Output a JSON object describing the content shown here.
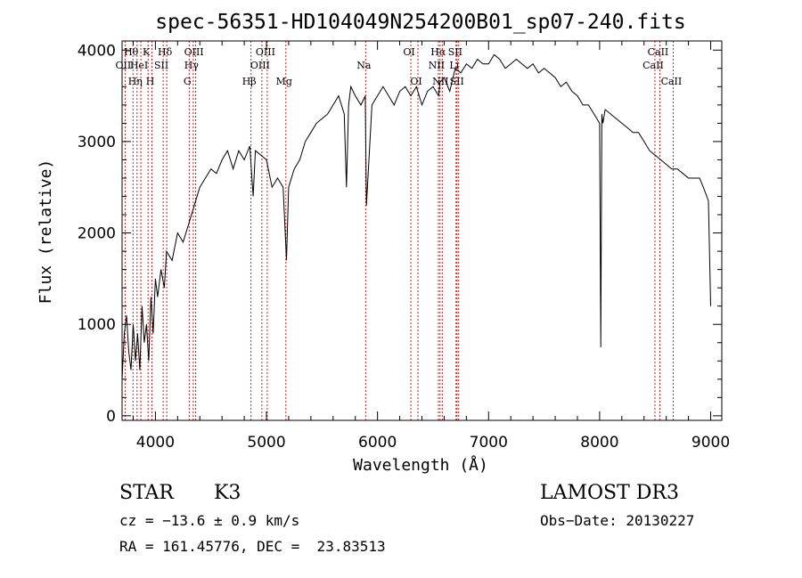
{
  "chart_data": {
    "type": "line",
    "title": "spec-56351-HD104049N254200B01_sp07-240.fits",
    "xlabel": "Wavelength (Å)",
    "ylabel": "Flux (relative)",
    "xlim": [
      3700,
      9100
    ],
    "ylim": [
      -50,
      4100
    ],
    "xticks": [
      4000,
      5000,
      6000,
      7000,
      8000,
      9000
    ],
    "yticks": [
      0,
      1000,
      2000,
      3000,
      4000
    ],
    "grid": false,
    "colors": {
      "spectrum": "#000000",
      "lines": "#cc0000"
    },
    "series": [
      {
        "x": [
          3700,
          3720,
          3740,
          3760,
          3780,
          3800,
          3820,
          3840,
          3860,
          3880,
          3900,
          3920,
          3940,
          3960,
          3980,
          4000,
          4020,
          4050,
          4080,
          4100,
          4150,
          4200,
          4250,
          4300,
          4350,
          4400,
          4450,
          4500,
          4550,
          4600,
          4650,
          4700,
          4750,
          4800,
          4850,
          4880,
          4900,
          4950,
          5000,
          5050,
          5100,
          5150,
          5180,
          5200,
          5250,
          5300,
          5350,
          5400,
          5450,
          5500,
          5550,
          5600,
          5650,
          5700,
          5720,
          5740,
          5760,
          5800,
          5850,
          5890,
          5900,
          5950,
          6000,
          6050,
          6100,
          6150,
          6200,
          6250,
          6300,
          6350,
          6400,
          6450,
          6500,
          6550,
          6563,
          6600,
          6650,
          6700,
          6750,
          6800,
          6850,
          6900,
          6950,
          7000,
          7050,
          7100,
          7150,
          7200,
          7250,
          7300,
          7350,
          7400,
          7450,
          7500,
          7550,
          7600,
          7650,
          7700,
          7750,
          7800,
          7850,
          7900,
          7950,
          8000,
          8010,
          8020,
          8030,
          8050,
          8100,
          8150,
          8200,
          8250,
          8300,
          8350,
          8400,
          8450,
          8500,
          8550,
          8600,
          8650,
          8700,
          8750,
          8800,
          8850,
          8900,
          8950,
          8980,
          9000
        ],
        "y": [
          400,
          900,
          1100,
          700,
          500,
          1000,
          600,
          900,
          500,
          1200,
          800,
          1000,
          600,
          1300,
          900,
          1500,
          1300,
          1600,
          1400,
          1800,
          1700,
          2000,
          1900,
          2100,
          2300,
          2500,
          2600,
          2700,
          2650,
          2800,
          2900,
          2700,
          2900,
          2800,
          2950,
          2400,
          2900,
          2850,
          2800,
          2500,
          2600,
          2500,
          1700,
          2500,
          2700,
          2800,
          3000,
          3100,
          3200,
          3250,
          3300,
          3400,
          3500,
          3300,
          2500,
          3400,
          3600,
          3500,
          3400,
          3500,
          2300,
          3400,
          3500,
          3600,
          3500,
          3400,
          3550,
          3600,
          3500,
          3600,
          3400,
          3550,
          3600,
          3500,
          3650,
          3700,
          3550,
          3800,
          3750,
          3850,
          3800,
          3900,
          3850,
          3850,
          3950,
          3900,
          3800,
          3850,
          3900,
          3850,
          3800,
          3850,
          3750,
          3800,
          3750,
          3700,
          3600,
          3650,
          3550,
          3500,
          3400,
          3400,
          3300,
          3200,
          750,
          3300,
          3200,
          3350,
          3300,
          3250,
          3200,
          3150,
          3100,
          3100,
          3000,
          2900,
          2850,
          2800,
          2750,
          2700,
          2700,
          2650,
          2600,
          2600,
          2600,
          2450,
          2350,
          1200
        ]
      }
    ],
    "spectral_lines": [
      {
        "w": 3727,
        "labels": [
          "OII"
        ],
        "row": 2
      },
      {
        "w": 3798,
        "labels": [
          "Hθ"
        ],
        "row": 1
      },
      {
        "w": 3835,
        "labels": [
          "Hη"
        ],
        "row": 3
      },
      {
        "w": 3869,
        "labels": [
          "HeI"
        ],
        "row": 2
      },
      {
        "w": 3934,
        "labels": [
          "K"
        ],
        "row": 1
      },
      {
        "w": 3969,
        "labels": [
          "H"
        ],
        "row": 3
      },
      {
        "w": 4070,
        "labels": [
          "SII"
        ],
        "row": 2
      },
      {
        "w": 4102,
        "labels": [
          "Hδ"
        ],
        "row": 1
      },
      {
        "w": 4304,
        "labels": [
          "G"
        ],
        "row": 3
      },
      {
        "w": 4341,
        "labels": [
          "Hγ"
        ],
        "row": 2
      },
      {
        "w": 4363,
        "labels": [
          "OIII"
        ],
        "row": 1
      },
      {
        "w": 4861,
        "labels": [
          "Hβ"
        ],
        "row": 3
      },
      {
        "w": 4959,
        "labels": [
          "OIII"
        ],
        "row": 2
      },
      {
        "w": 5007,
        "labels": [
          "OIII"
        ],
        "row": 1
      },
      {
        "w": 5175,
        "labels": [
          "Mg"
        ],
        "row": 3
      },
      {
        "w": 5893,
        "labels": [
          "Na"
        ],
        "row": 2
      },
      {
        "w": 6300,
        "labels": [
          "OI"
        ],
        "row": 1
      },
      {
        "w": 6364,
        "labels": [
          "OI"
        ],
        "row": 3
      },
      {
        "w": 6548,
        "labels": [
          "NII"
        ],
        "row": 2
      },
      {
        "w": 6563,
        "labels": [
          "Hα"
        ],
        "row": 1
      },
      {
        "w": 6583,
        "labels": [
          "NII"
        ],
        "row": 3
      },
      {
        "w": 6707,
        "labels": [
          "Li"
        ],
        "row": 2
      },
      {
        "w": 6716,
        "labels": [
          "SII"
        ],
        "row": 1
      },
      {
        "w": 6731,
        "labels": [
          "SII"
        ],
        "row": 3
      },
      {
        "w": 8498,
        "labels": [
          "CaII"
        ],
        "row": 2
      },
      {
        "w": 8542,
        "labels": [
          "CaII"
        ],
        "row": 1
      },
      {
        "w": 8662,
        "labels": [
          "CaII"
        ],
        "row": 3
      }
    ]
  },
  "footer": {
    "object_class": "STAR",
    "subclass": "K3",
    "survey": "LAMOST DR3",
    "redshift": "cz = −13.6 ± 0.9 km/s",
    "obs_date": "Obs−Date: 20130227",
    "coords": "RA = 161.45776, DEC =  23.83513"
  }
}
